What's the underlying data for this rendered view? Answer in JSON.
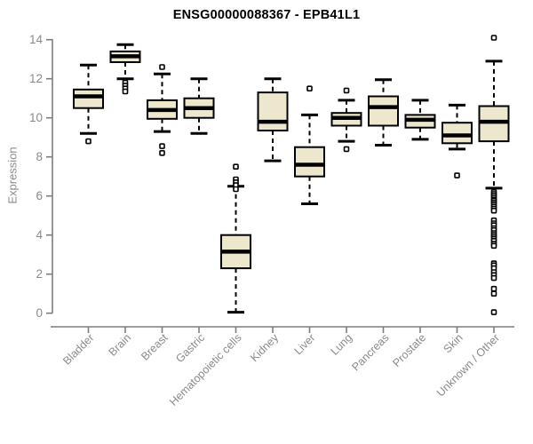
{
  "title": "ENSG00000088367 - EPB41L1",
  "ylabel": "Expression",
  "colors": {
    "box_fill": "#ede7cd",
    "box_border": "#000000",
    "median": "#000000",
    "whisker": "#000000",
    "outlier_fill": "#ffffff",
    "axis_line": "#7d7d7d",
    "axis_text": "#8a8a8a",
    "title_text": "#000000",
    "background": "#ffffff"
  },
  "chart_data": {
    "type": "boxplot",
    "title": "ENSG00000088367 - EPB41L1",
    "xlabel": "",
    "ylabel": "Expression",
    "ylim": [
      0,
      14
    ],
    "yticks": [
      0,
      2,
      4,
      6,
      8,
      10,
      12,
      14
    ],
    "grid": false,
    "legend": false,
    "categories": [
      "Bladder",
      "Brain",
      "Breast",
      "Gastric",
      "Hematopoietic cells",
      "Kidney",
      "Liver",
      "Lung",
      "Pancreas",
      "Prostate",
      "Skin",
      "Unknown / Other"
    ],
    "series": [
      {
        "name": "Bladder",
        "whisker_low": 9.2,
        "q1": 10.5,
        "median": 11.1,
        "q3": 11.45,
        "whisker_high": 12.7,
        "outliers": [
          8.8
        ]
      },
      {
        "name": "Brain",
        "whisker_low": 12.0,
        "q1": 12.85,
        "median": 13.15,
        "q3": 13.4,
        "whisker_high": 13.75,
        "outliers": [
          11.8,
          11.65,
          11.5,
          11.35
        ]
      },
      {
        "name": "Breast",
        "whisker_low": 9.3,
        "q1": 9.95,
        "median": 10.4,
        "q3": 10.9,
        "whisker_high": 12.25,
        "outliers": [
          12.6,
          8.55,
          8.2
        ]
      },
      {
        "name": "Gastric",
        "whisker_low": 9.2,
        "q1": 10.0,
        "median": 10.5,
        "q3": 11.0,
        "whisker_high": 12.0,
        "outliers": []
      },
      {
        "name": "Hematopoietic cells",
        "whisker_low": 0.05,
        "q1": 2.3,
        "median": 3.15,
        "q3": 4.0,
        "whisker_high": 6.5,
        "outliers": [
          7.5,
          6.85,
          6.7,
          6.55,
          6.35
        ]
      },
      {
        "name": "Kidney",
        "whisker_low": 7.8,
        "q1": 9.35,
        "median": 9.8,
        "q3": 11.3,
        "whisker_high": 12.0,
        "outliers": []
      },
      {
        "name": "Liver",
        "whisker_low": 5.6,
        "q1": 7.0,
        "median": 7.6,
        "q3": 8.5,
        "whisker_high": 10.15,
        "outliers": [
          11.5
        ]
      },
      {
        "name": "Lung",
        "whisker_low": 8.8,
        "q1": 9.6,
        "median": 10.0,
        "q3": 10.25,
        "whisker_high": 10.9,
        "outliers": [
          11.4,
          8.4
        ]
      },
      {
        "name": "Pancreas",
        "whisker_low": 8.6,
        "q1": 9.6,
        "median": 10.55,
        "q3": 11.1,
        "whisker_high": 11.95,
        "outliers": []
      },
      {
        "name": "Prostate",
        "whisker_low": 8.9,
        "q1": 9.5,
        "median": 9.9,
        "q3": 10.15,
        "whisker_high": 10.9,
        "outliers": []
      },
      {
        "name": "Skin",
        "whisker_low": 8.4,
        "q1": 8.7,
        "median": 9.1,
        "q3": 9.75,
        "whisker_high": 10.65,
        "outliers": [
          7.05
        ]
      },
      {
        "name": "Unknown / Other",
        "whisker_low": 6.4,
        "q1": 8.8,
        "median": 9.8,
        "q3": 10.6,
        "whisker_high": 12.9,
        "outliers": [
          14.1,
          6.2,
          6.1,
          6.0,
          5.9,
          5.8,
          5.75,
          5.65,
          5.55,
          5.45,
          5.35,
          5.25,
          4.75,
          4.6,
          4.5,
          4.35,
          4.25,
          4.1,
          4.0,
          3.9,
          3.8,
          3.7,
          3.55,
          3.45,
          2.55,
          2.45,
          2.3,
          2.1,
          1.95,
          1.8,
          1.25,
          1.0,
          0.05
        ]
      }
    ]
  }
}
